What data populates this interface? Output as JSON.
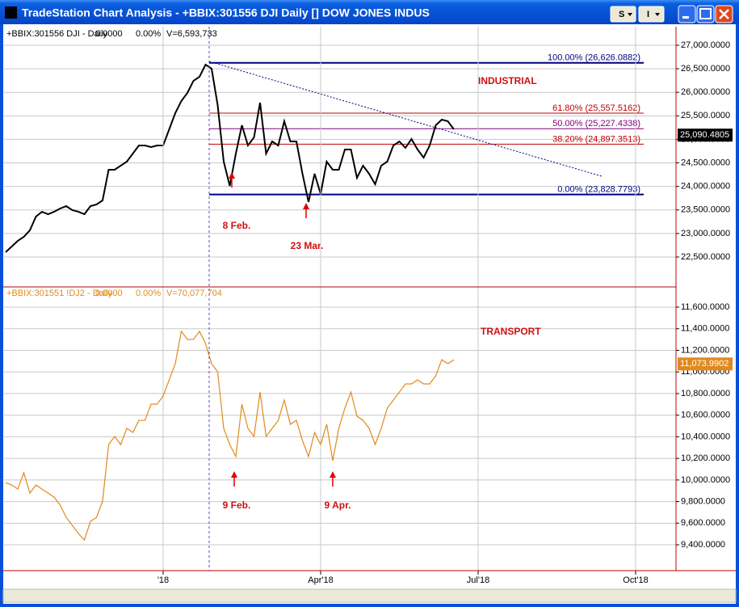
{
  "window": {
    "title": "TradeStation Chart Analysis - +BBIX:301556 DJI Daily [] DOW JONES INDUS",
    "buttons": [
      "S",
      "I"
    ]
  },
  "chart_data": [
    {
      "type": "line",
      "info": [
        "0.0000",
        "0.00%",
        "V=6,593,733"
      ],
      "series": [
        {
          "name": "+BBIX:301556 DJI - Daily",
          "color": "#000000",
          "values": [
            22603,
            22723,
            22843,
            22929,
            23067,
            23359,
            23462,
            23410,
            23462,
            23530,
            23582,
            23496,
            23462,
            23410,
            23582,
            23616,
            23702,
            24355,
            24355,
            24441,
            24527,
            24698,
            24870,
            24870,
            24836,
            24870,
            24870,
            25214,
            25557,
            25815,
            25987,
            26244,
            26330,
            26588,
            26502,
            25729,
            24527,
            24011,
            24698,
            25300,
            24870,
            25042,
            25780,
            24698,
            24956,
            24870,
            25385,
            24956,
            24956,
            24269,
            23668,
            24269,
            23840,
            24527,
            24355,
            24355,
            24784,
            24784,
            24183,
            24441,
            24269,
            24046,
            24441,
            24527,
            24870,
            24956,
            24819,
            25007,
            24784,
            24612,
            24870,
            25300,
            25420,
            25385,
            25214
          ]
        }
      ],
      "last": {
        "value": 25090.4805,
        "label": "25,090.4805"
      },
      "levels": [
        {
          "value": 26626.0882,
          "label": "100.00% (26,626.0882)",
          "color": "#000080"
        },
        {
          "value": 25557.5162,
          "label": "61.80% (25,557.5162)",
          "color": "#c00000"
        },
        {
          "value": 25227.4338,
          "label": "50.00% (25,227.4338)",
          "color": "#800080"
        },
        {
          "value": 24897.3513,
          "label": "38.20% (24,897.3513)",
          "color": "#c00000"
        },
        {
          "value": 23828.7793,
          "label": "0.00% (23,828.7793)",
          "color": "#000080"
        }
      ],
      "annotations": [
        "INDUSTRIAL",
        "8 Feb.",
        "23 Mar."
      ],
      "ylim": [
        21864,
        27395
      ],
      "yticks": [
        {
          "value": 22500,
          "label": "22,500.0000"
        },
        {
          "value": 23000,
          "label": "23,000.0000"
        },
        {
          "value": 23500,
          "label": "23,500.0000"
        },
        {
          "value": 24000,
          "label": "24,000.0000"
        },
        {
          "value": 24500,
          "label": "24,500.0000"
        },
        {
          "value": 25000,
          "label": "25,000.0000"
        },
        {
          "value": 25500,
          "label": "25,500.0000"
        },
        {
          "value": 26000,
          "label": "26,000.0000"
        },
        {
          "value": 26500,
          "label": "26,500.0000"
        },
        {
          "value": 27000,
          "label": "27,000.0000"
        }
      ],
      "grid": true
    },
    {
      "type": "line",
      "info": [
        "0.0000",
        "0.00%",
        "V=70,077,704"
      ],
      "categories": [
        null,
        null,
        null,
        null,
        null,
        null,
        null,
        null,
        null,
        null,
        null,
        null,
        null,
        null,
        null,
        null,
        null,
        null,
        null,
        null,
        null,
        null,
        null,
        null,
        null,
        null,
        "'18",
        null,
        null,
        null,
        null,
        null,
        null,
        null,
        null,
        null,
        null,
        null,
        null,
        null,
        null,
        null,
        null,
        null,
        null,
        null,
        null,
        null,
        null,
        null,
        null,
        null,
        "Apr'18",
        null,
        null,
        null,
        null,
        null,
        null,
        null,
        null,
        null,
        null,
        null,
        null,
        null,
        null,
        null,
        null,
        null,
        null,
        null,
        null,
        null,
        null,
        null,
        null,
        null,
        "Jul'18",
        null,
        null,
        null,
        null,
        null,
        null,
        null,
        null,
        null,
        null,
        null,
        null,
        null,
        null,
        null,
        null,
        null,
        null,
        null,
        null,
        null,
        null,
        null,
        null,
        null,
        "Oct'18"
      ],
      "series": [
        {
          "name": "+BBIX:301551 !DJ2 - Daily",
          "color": "#e08a1e",
          "values": [
            9976,
            9954,
            9916,
            10066,
            9879,
            9954,
            9916,
            9879,
            9841,
            9767,
            9654,
            9580,
            9505,
            9445,
            9617,
            9654,
            9804,
            10328,
            10403,
            10328,
            10478,
            10440,
            10552,
            10552,
            10702,
            10702,
            10777,
            10927,
            11076,
            11376,
            11301,
            11301,
            11376,
            11263,
            11076,
            11001,
            10478,
            10328,
            10216,
            10702,
            10478,
            10403,
            10814,
            10403,
            10478,
            10552,
            10739,
            10515,
            10552,
            10365,
            10216,
            10440,
            10328,
            10515,
            10178,
            10478,
            10665,
            10814,
            10590,
            10552,
            10478,
            10328,
            10478,
            10665,
            10739,
            10814,
            10889,
            10889,
            10927,
            10889,
            10889,
            10964,
            11113,
            11076,
            11113,
            null,
            null,
            null,
            null,
            null,
            null,
            null,
            null,
            null,
            null,
            null,
            null,
            null,
            null,
            null,
            null,
            null,
            null,
            null,
            null,
            null,
            null,
            null,
            null,
            null,
            null,
            null,
            null,
            null,
            null
          ]
        }
      ],
      "last": {
        "value": 11073.9902,
        "label": "11,073.9902"
      },
      "annotations": [
        "TRANSPORT",
        "9 Feb.",
        "9 Apr."
      ],
      "ylim": [
        9161,
        11787
      ],
      "yticks": [
        {
          "value": 9400,
          "label": "9,400.0000"
        },
        {
          "value": 9600,
          "label": "9,600.0000"
        },
        {
          "value": 9800,
          "label": "9,800.0000"
        },
        {
          "value": 10000,
          "label": "10,000.0000"
        },
        {
          "value": 10200,
          "label": "10,200.0000"
        },
        {
          "value": 10400,
          "label": "10,400.0000"
        },
        {
          "value": 10600,
          "label": "10,600.0000"
        },
        {
          "value": 10800,
          "label": "10,800.0000"
        },
        {
          "value": 11000,
          "label": "11,000.0000"
        },
        {
          "value": 11200,
          "label": "11,200.0000"
        },
        {
          "value": 11400,
          "label": "11,400.0000"
        },
        {
          "value": 11600,
          "label": "11,600.0000"
        }
      ],
      "grid": true
    }
  ]
}
